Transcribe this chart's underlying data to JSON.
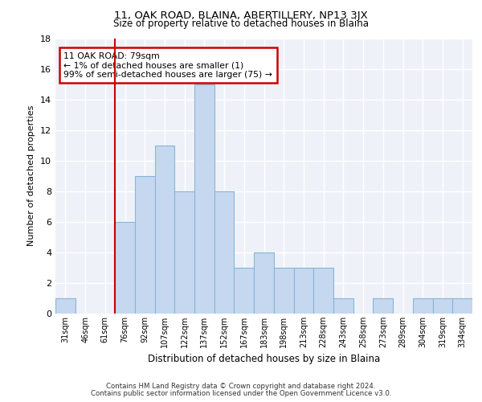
{
  "title_line1": "11, OAK ROAD, BLAINA, ABERTILLERY, NP13 3JX",
  "title_line2": "Size of property relative to detached houses in Blaina",
  "xlabel": "Distribution of detached houses by size in Blaina",
  "ylabel": "Number of detached properties",
  "bar_labels": [
    "31sqm",
    "46sqm",
    "61sqm",
    "76sqm",
    "92sqm",
    "107sqm",
    "122sqm",
    "137sqm",
    "152sqm",
    "167sqm",
    "183sqm",
    "198sqm",
    "213sqm",
    "228sqm",
    "243sqm",
    "258sqm",
    "273sqm",
    "289sqm",
    "304sqm",
    "319sqm",
    "334sqm"
  ],
  "bar_values": [
    1,
    0,
    0,
    6,
    9,
    11,
    8,
    15,
    8,
    3,
    4,
    3,
    3,
    3,
    1,
    0,
    1,
    0,
    1,
    1,
    1
  ],
  "bar_color": "#c5d8f0",
  "bar_edge_color": "#8ab4d8",
  "red_line_index": 3,
  "annotation_text": "11 OAK ROAD: 79sqm\n← 1% of detached houses are smaller (1)\n99% of semi-detached houses are larger (75) →",
  "annotation_box_color": "#ffffff",
  "annotation_box_edge_color": "#cc0000",
  "ylim": [
    0,
    18
  ],
  "yticks": [
    0,
    2,
    4,
    6,
    8,
    10,
    12,
    14,
    16,
    18
  ],
  "footer_line1": "Contains HM Land Registry data © Crown copyright and database right 2024.",
  "footer_line2": "Contains public sector information licensed under the Open Government Licence v3.0.",
  "background_color": "#eef2f8",
  "grid_color": "#ffffff"
}
